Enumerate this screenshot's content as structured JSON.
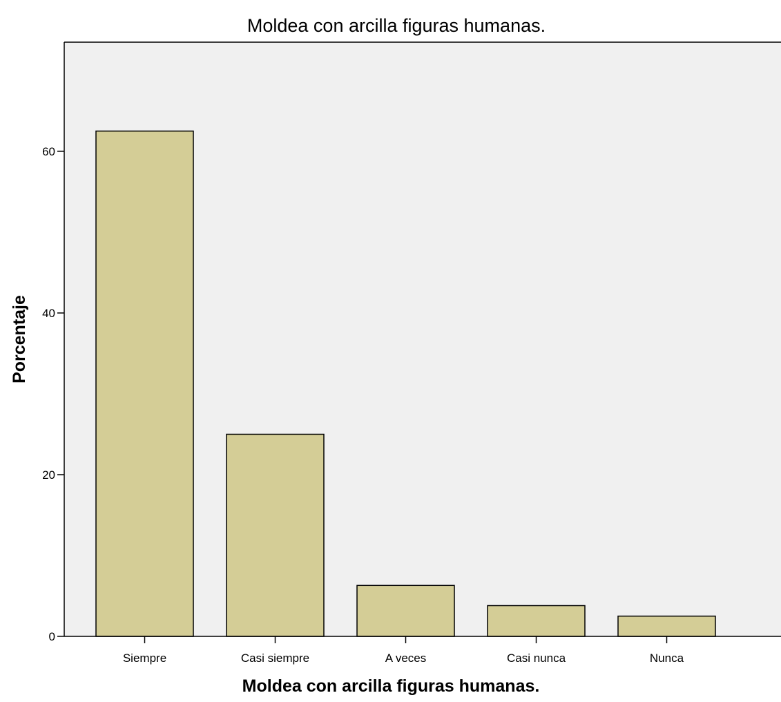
{
  "chart_data": {
    "type": "bar",
    "title": "Moldea con arcilla figuras humanas.",
    "xlabel": "Moldea con arcilla figuras humanas.",
    "ylabel": "Porcentaje",
    "categories": [
      "Siempre",
      "Casi siempre",
      "A veces",
      "Casi nunca",
      "Nunca"
    ],
    "values": [
      62.5,
      25.0,
      6.3,
      3.8,
      2.5
    ],
    "ylim": [
      0,
      73.5
    ],
    "yticks": [
      0,
      20,
      40,
      60
    ],
    "grid": false,
    "legend": "none",
    "colors": {
      "bar_fill": "#d4cd96",
      "bar_stroke": "#000000",
      "plot_background": "#f0f0f0",
      "axis": "#000000"
    }
  }
}
